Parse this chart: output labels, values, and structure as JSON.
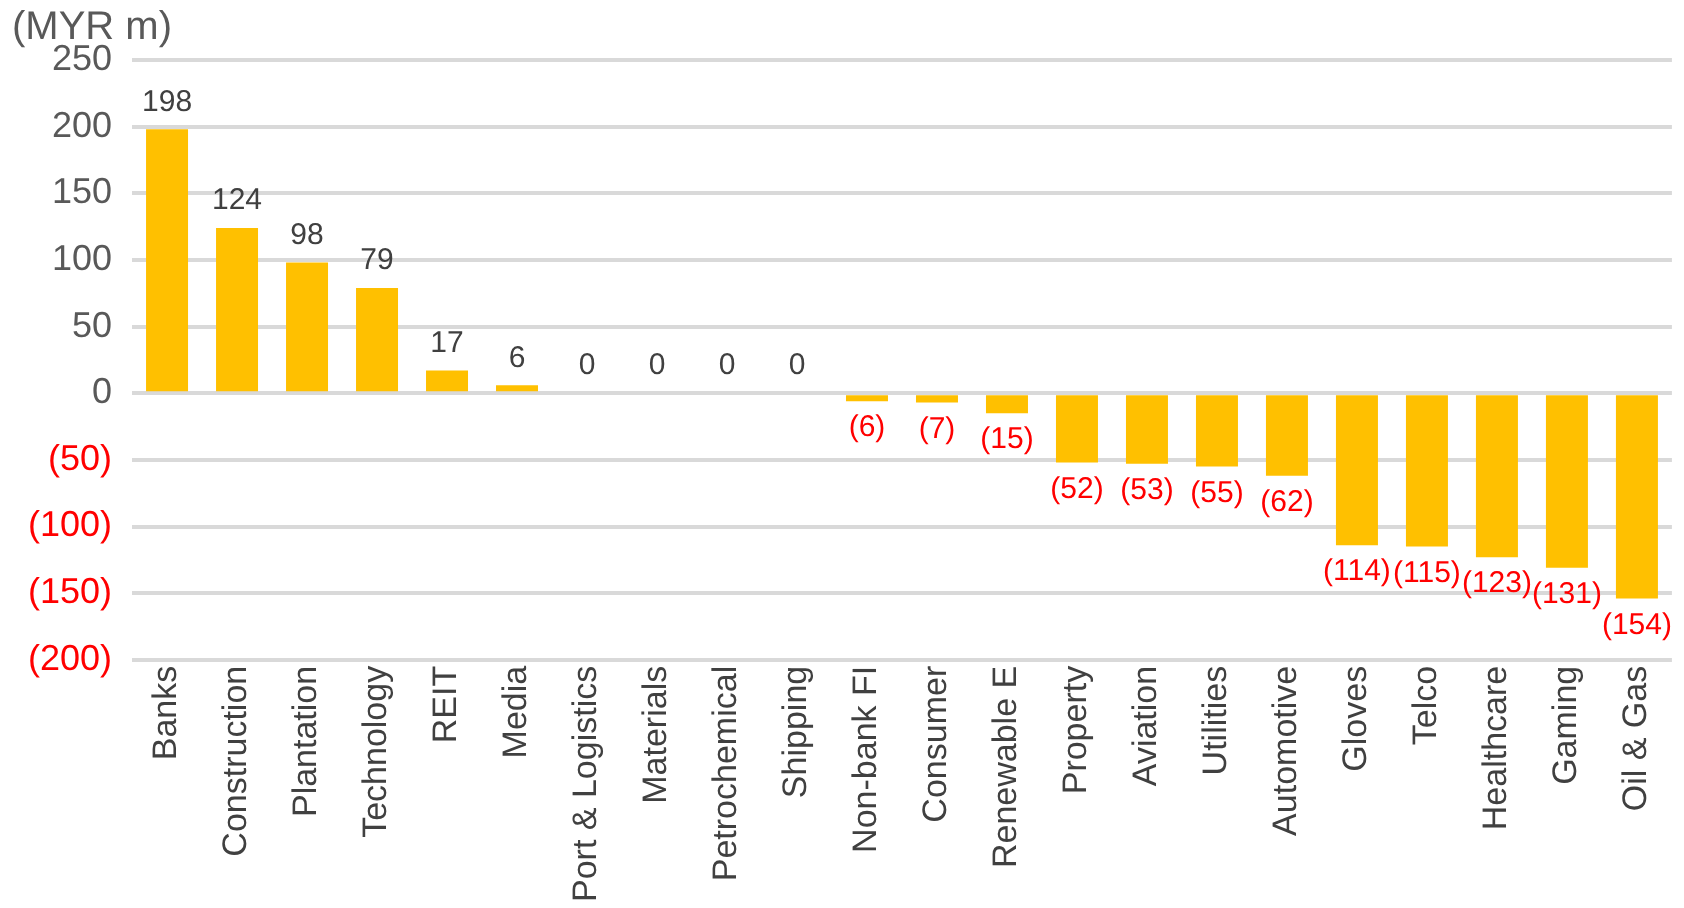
{
  "chart_data": {
    "type": "bar",
    "ylabel": "(MYR m)",
    "categories": [
      "Banks",
      "Construction",
      "Plantation",
      "Technology",
      "REIT",
      "Media",
      "Port & Logistics",
      "Materials",
      "Petrochemical",
      "Shipping",
      "Non-bank FI",
      "Consumer",
      "Renewable E",
      "Property",
      "Aviation",
      "Utilities",
      "Automotive",
      "Gloves",
      "Telco",
      "Healthcare",
      "Gaming",
      "Oil & Gas"
    ],
    "values": [
      198,
      124,
      98,
      79,
      17,
      6,
      0,
      0,
      0,
      0,
      -6,
      -7,
      -15,
      -52,
      -53,
      -55,
      -62,
      -114,
      -115,
      -123,
      -131,
      -154
    ],
    "value_labels": [
      "198",
      "124",
      "98",
      "79",
      "17",
      "6",
      "0",
      "0",
      "0",
      "0",
      "(6)",
      "(7)",
      "(15)",
      "(52)",
      "(53)",
      "(55)",
      "(62)",
      "(114)",
      "(115)",
      "(123)",
      "(131)",
      "(154)"
    ],
    "color": "#ffc000",
    "ylim": [
      -200,
      250
    ],
    "yticks": [
      {
        "value": -200,
        "label": "(200)"
      },
      {
        "value": -150,
        "label": "(150)"
      },
      {
        "value": -100,
        "label": "(100)"
      },
      {
        "value": -50,
        "label": "(50)"
      },
      0,
      50,
      100,
      150,
      200,
      250
    ],
    "grid": "y",
    "legend": false
  }
}
